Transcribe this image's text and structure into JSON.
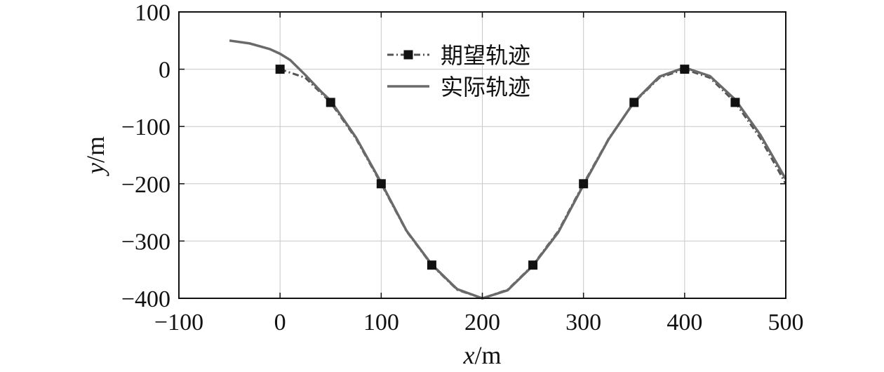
{
  "chart_data": {
    "type": "line",
    "xlabel_var": "x",
    "xlabel_unit": "/m",
    "ylabel_var": "y",
    "ylabel_unit": "/m",
    "xlim": [
      -100,
      500
    ],
    "ylim": [
      -400,
      100
    ],
    "xticks": [
      -100,
      0,
      100,
      200,
      300,
      400,
      500
    ],
    "yticks": [
      100,
      0,
      -100,
      -200,
      -300,
      -400
    ],
    "xtick_labels": [
      "−100",
      "0",
      "100",
      "200",
      "300",
      "400",
      "500"
    ],
    "ytick_labels": [
      "100",
      "0",
      "−100",
      "−200",
      "−300",
      "−400"
    ],
    "grid": true,
    "legend_position": "top-center",
    "series": [
      {
        "name": "期望轨迹",
        "style": "dash-dot with square markers",
        "color": "#555555",
        "x": [
          0,
          25,
          50,
          75,
          100,
          125,
          150,
          175,
          200,
          225,
          250,
          275,
          300,
          325,
          350,
          375,
          400,
          425,
          450,
          475,
          500
        ],
        "y": [
          0,
          -15,
          -58,
          -121,
          -200,
          -283,
          -342,
          -385,
          -400,
          -385,
          -342,
          -283,
          -200,
          -121,
          -58,
          -15,
          0,
          -15,
          -58,
          -121,
          -200
        ],
        "marker_x": [
          0,
          50,
          100,
          150,
          250,
          300,
          350,
          400,
          450
        ],
        "marker_y": [
          0,
          -58,
          -200,
          -342,
          -342,
          -200,
          -58,
          0,
          -58
        ]
      },
      {
        "name": "实际轨迹",
        "style": "solid",
        "color": "#6a6a6a",
        "x": [
          -50,
          -30,
          -10,
          0,
          10,
          25,
          40,
          50,
          75,
          100,
          125,
          150,
          175,
          200,
          225,
          250,
          275,
          300,
          325,
          350,
          375,
          400,
          425,
          450,
          475,
          500
        ],
        "y": [
          50,
          45,
          35,
          27,
          16,
          -10,
          -38,
          -55,
          -119,
          -198,
          -282,
          -341,
          -384,
          -400,
          -386,
          -343,
          -285,
          -202,
          -122,
          -57,
          -13,
          3,
          -12,
          -53,
          -115,
          -192
        ]
      }
    ]
  }
}
